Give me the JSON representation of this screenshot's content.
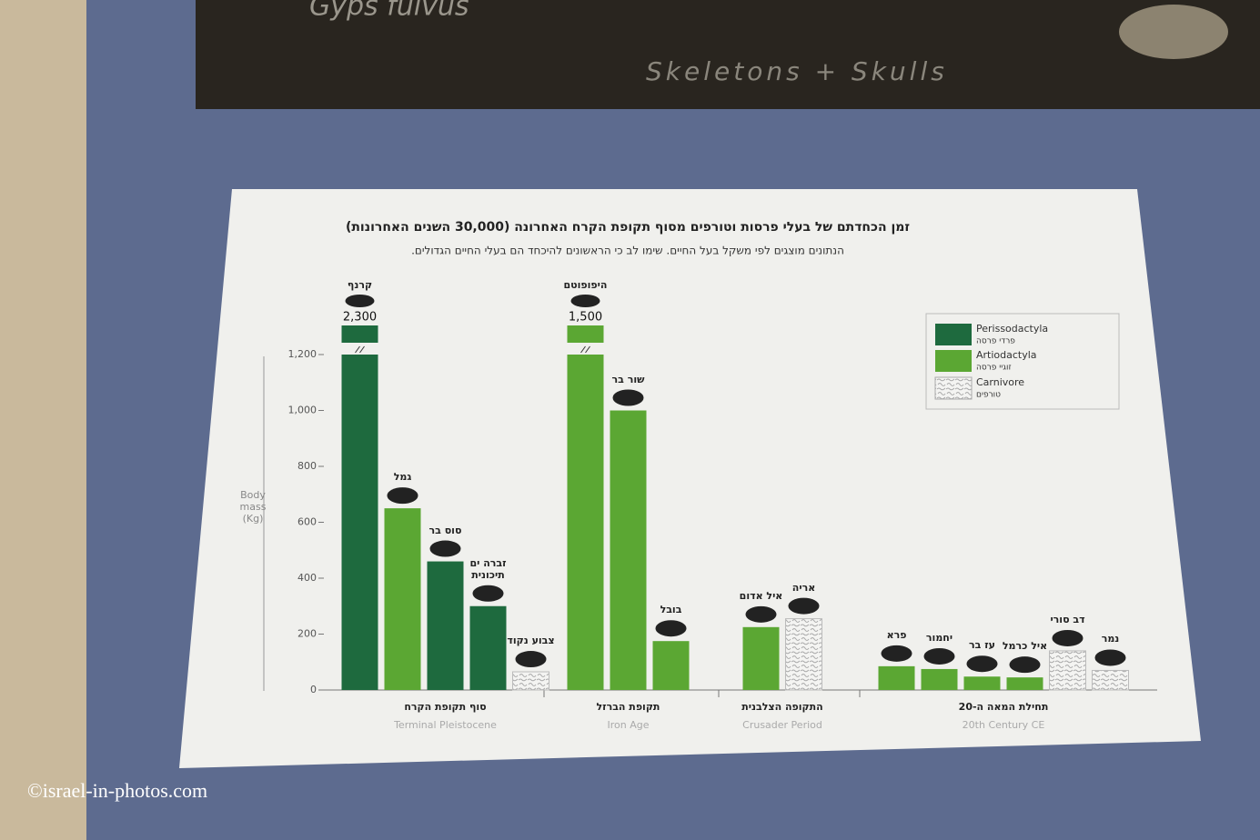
{
  "scene": {
    "box_label": "Gyps fulvus",
    "box_sublabel": "Skeletons + Skulls",
    "watermark": "©israel-in-photos.com"
  },
  "chart_data": {
    "type": "bar",
    "title": "זמן הכחדתם של בעלי פרסות וטורפים מסוף תקופת הקרח האחרונה (30,000 השנים האחרונות)",
    "subtitle": "הנתונים מוצגים לפי משקל בעל החיים. שימו לב כי הראשונים להיכחד הם בעלי החיים הגדולים.",
    "y_label": "Body mass (Kg)",
    "ylim": [
      0,
      1200
    ],
    "yticks": [
      0,
      200,
      400,
      600,
      800,
      {
        "value": 1000,
        "label": "1,000"
      },
      {
        "value": 1200,
        "label": "1,200"
      }
    ],
    "groups": [
      {
        "label": "סוף תקופת הקרח",
        "label_en": "Terminal Pleistocene",
        "categories": [
          "קרנף",
          "גמל",
          "סוס בר",
          "זברה ים תיכונית",
          "צבוע נקוד"
        ]
      },
      {
        "label": "תקופת הברזל",
        "label_en": "Iron Age",
        "categories": [
          "היפופוטם",
          "שור בר",
          "בובל"
        ]
      },
      {
        "label": "התקופה הצלבנית",
        "label_en": "Crusader Period",
        "categories": [
          "איל אדום",
          "אריה"
        ]
      },
      {
        "label": "תחילת המאה ה-20",
        "label_en": "20th Century CE",
        "categories": [
          "פרא",
          "יחמור",
          "עז בר",
          "איל כרמל",
          "דב סורי",
          "נמר"
        ]
      }
    ],
    "series": [
      {
        "name": "Perissodactyla",
        "name_he": "פרדי פרסה",
        "color": "#1e6a3e",
        "values": [
          2300,
          null,
          460,
          300,
          null,
          null,
          null,
          null,
          null,
          null,
          null,
          null,
          null,
          null,
          null,
          null
        ],
        "value_labels": [
          "2,300",
          null,
          null,
          null,
          null,
          null,
          null,
          null,
          null,
          null,
          null,
          null,
          null,
          null,
          null,
          null
        ]
      },
      {
        "name": "Artiodactyla",
        "name_he": "זוגיי פרסה",
        "color": "#5ba733",
        "values": [
          null,
          650,
          null,
          null,
          null,
          1500,
          1000,
          175,
          225,
          null,
          85,
          75,
          48,
          45,
          null,
          null
        ],
        "value_labels": [
          null,
          null,
          null,
          null,
          null,
          "1,500",
          null,
          null,
          null,
          null,
          null,
          null,
          null,
          null,
          null,
          null
        ]
      },
      {
        "name": "Carnivore",
        "name_he": "טורפים",
        "color": "#b9b9b9",
        "values": [
          null,
          null,
          null,
          null,
          65,
          null,
          null,
          null,
          null,
          255,
          null,
          null,
          null,
          null,
          140,
          70
        ]
      }
    ]
  }
}
